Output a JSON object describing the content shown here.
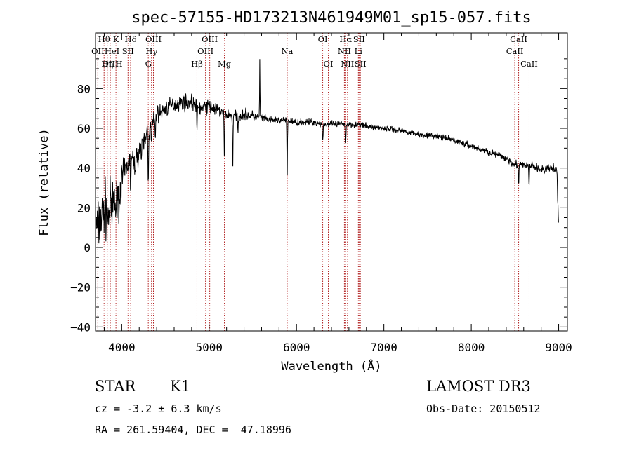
{
  "chart_data": {
    "type": "line",
    "title": "spec-57155-HD173213N461949M01_sp15-057.fits",
    "xlabel": "Wavelength (Å)",
    "ylabel": "Flux (relative)",
    "xlim": [
      3700,
      9100
    ],
    "ylim": [
      -42,
      108
    ],
    "xticks": [
      4000,
      5000,
      6000,
      7000,
      8000,
      9000
    ],
    "yticks": [
      -40,
      -20,
      0,
      20,
      40,
      60,
      80
    ],
    "line_color": "#000000",
    "marker_color": "#b22222",
    "spectral_lines": [
      {
        "label": "Hθ",
        "wavelength": 3798,
        "row": 0
      },
      {
        "label": "OII",
        "wavelength": 3727,
        "row": 1
      },
      {
        "label": "OIII",
        "wavelength": 3869,
        "row": 2
      },
      {
        "label": "K",
        "wavelength": 3934,
        "row": 0
      },
      {
        "label": "HeI",
        "wavelength": 3889,
        "row": 1
      },
      {
        "label": "Hη",
        "wavelength": 3835,
        "row": 2
      },
      {
        "label": "H",
        "wavelength": 3969,
        "row": 2
      },
      {
        "label": "SII",
        "wavelength": 4072,
        "row": 1
      },
      {
        "label": "Hδ",
        "wavelength": 4102,
        "row": 0
      },
      {
        "label": "OIII",
        "wavelength": 4363,
        "row": 0
      },
      {
        "label": "Hγ",
        "wavelength": 4341,
        "row": 1
      },
      {
        "label": "G",
        "wavelength": 4304,
        "row": 2
      },
      {
        "label": "OIII",
        "wavelength": 5007,
        "row": 0
      },
      {
        "label": "OIII",
        "wavelength": 4959,
        "row": 1
      },
      {
        "label": "Hβ",
        "wavelength": 4861,
        "row": 2
      },
      {
        "label": "Mg",
        "wavelength": 5175,
        "row": 2
      },
      {
        "label": "Na",
        "wavelength": 5893,
        "row": 1
      },
      {
        "label": "OI",
        "wavelength": 6300,
        "row": 0
      },
      {
        "label": "OI",
        "wavelength": 6364,
        "row": 2
      },
      {
        "label": "Hα",
        "wavelength": 6563,
        "row": 0
      },
      {
        "label": "SII",
        "wavelength": 6716,
        "row": 0
      },
      {
        "label": "NII",
        "wavelength": 6548,
        "row": 1
      },
      {
        "label": "Li",
        "wavelength": 6708,
        "row": 1
      },
      {
        "label": "NII",
        "wavelength": 6583,
        "row": 2
      },
      {
        "label": "SII",
        "wavelength": 6731,
        "row": 2
      },
      {
        "label": "CaII",
        "wavelength": 8542,
        "row": 0
      },
      {
        "label": "CaII",
        "wavelength": 8498,
        "row": 1
      },
      {
        "label": "CaII",
        "wavelength": 8662,
        "row": 2
      }
    ],
    "spectrum": {
      "x": [
        3700,
        3750,
        3800,
        3850,
        3900,
        3950,
        4000,
        4050,
        4100,
        4150,
        4200,
        4250,
        4300,
        4350,
        4400,
        4450,
        4500,
        4600,
        4700,
        4800,
        4900,
        5000,
        5100,
        5200,
        5300,
        5400,
        5500,
        5600,
        5700,
        5800,
        5900,
        6000,
        6100,
        6200,
        6300,
        6400,
        6500,
        6600,
        6700,
        6800,
        7000,
        7200,
        7400,
        7600,
        7800,
        8000,
        8200,
        8400,
        8500,
        8600,
        8700,
        8800,
        8900,
        8980,
        9000
      ],
      "y": [
        10,
        12,
        20,
        18,
        24,
        28,
        33,
        40,
        44,
        42,
        49,
        53,
        56,
        62,
        67,
        68,
        70,
        72,
        73,
        73,
        70,
        71,
        69,
        67,
        66,
        67,
        66,
        65,
        64,
        64,
        64,
        63,
        63,
        63,
        62,
        62,
        62,
        62,
        62,
        61,
        60,
        59,
        57,
        56,
        54,
        51,
        48,
        45,
        42,
        41,
        41,
        39,
        40,
        39,
        8
      ],
      "noise": [
        12,
        12,
        13,
        12,
        11,
        9,
        8,
        6,
        6,
        6,
        5,
        5,
        5,
        4,
        4,
        4,
        4,
        3.5,
        3.5,
        3.5,
        3.5,
        3.5,
        3,
        2.5,
        2.5,
        2.5,
        2.5,
        2,
        1.5,
        1.5,
        1.5,
        1.5,
        1.5,
        1.5,
        1.5,
        1.5,
        1.5,
        1.5,
        1.5,
        1.3,
        1.3,
        1.3,
        1.3,
        1.3,
        1.3,
        1.5,
        1.5,
        2,
        2,
        2,
        2,
        2,
        2,
        2,
        2
      ],
      "absorption": [
        {
          "x": 3840,
          "depth": 18
        },
        {
          "x": 3890,
          "depth": 10
        },
        {
          "x": 3934,
          "depth": 20
        },
        {
          "x": 3969,
          "depth": 18
        },
        {
          "x": 4102,
          "depth": 15
        },
        {
          "x": 4226,
          "depth": 10
        },
        {
          "x": 4304,
          "depth": 22
        },
        {
          "x": 4341,
          "depth": 10
        },
        {
          "x": 4383,
          "depth": 12
        },
        {
          "x": 4861,
          "depth": 14
        },
        {
          "x": 5175,
          "depth": 25
        },
        {
          "x": 5270,
          "depth": 28
        },
        {
          "x": 5330,
          "depth": 10
        },
        {
          "x": 5893,
          "depth": 30
        },
        {
          "x": 6300,
          "depth": 9
        },
        {
          "x": 6563,
          "depth": 10
        },
        {
          "x": 8542,
          "depth": 10
        },
        {
          "x": 8662,
          "depth": 10
        }
      ],
      "emission": [
        {
          "x": 3840,
          "height": 12
        },
        {
          "x": 4290,
          "height": 10
        },
        {
          "x": 5580,
          "height": 30
        }
      ]
    }
  },
  "info": {
    "object_type": "STAR",
    "subclass": "K1",
    "cz": "cz = -3.2 ± 6.3 km/s",
    "radec": "RA = 261.59404, DEC =  47.18996",
    "survey": "LAMOST DR3",
    "obs_date": "Obs-Date: 20150512"
  }
}
